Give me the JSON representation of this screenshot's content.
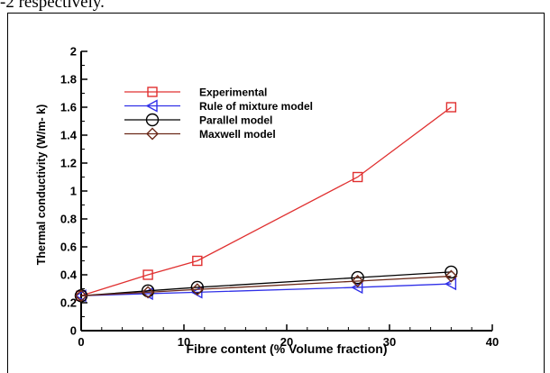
{
  "caption_text": "-2 respectively.",
  "chart_data": {
    "type": "line",
    "xlabel": "Fibre content (% Volume fraction)",
    "ylabel": "Thermal conductivity (W/m- k)",
    "xlim": [
      0,
      40
    ],
    "ylim": [
      0,
      2
    ],
    "xticks": [
      "0",
      "10",
      "20",
      "30",
      "40"
    ],
    "yticks": [
      "0",
      "0.2",
      "0.4",
      "0.6",
      "0.8",
      "1",
      "1.2",
      "1.4",
      "1.6",
      "1.8",
      "2"
    ],
    "grid": false,
    "legend_position": "top-left",
    "x": [
      0,
      6.5,
      11.3,
      26.9,
      36.0
    ],
    "series": [
      {
        "name": "Experimental",
        "color": "#e03030",
        "marker": "square",
        "values": [
          0.25,
          0.4,
          0.5,
          1.1,
          1.6
        ]
      },
      {
        "name": "Rule of mixture model",
        "color": "#3030e8",
        "marker": "triangle-left",
        "values": [
          0.25,
          0.265,
          0.275,
          0.31,
          0.335
        ]
      },
      {
        "name": "Parallel model",
        "color": "#000000",
        "marker": "circle",
        "values": [
          0.25,
          0.285,
          0.31,
          0.38,
          0.42
        ]
      },
      {
        "name": "Maxwell model",
        "color": "#6b2a1a",
        "marker": "diamond",
        "values": [
          0.25,
          0.275,
          0.295,
          0.355,
          0.39
        ]
      }
    ]
  }
}
